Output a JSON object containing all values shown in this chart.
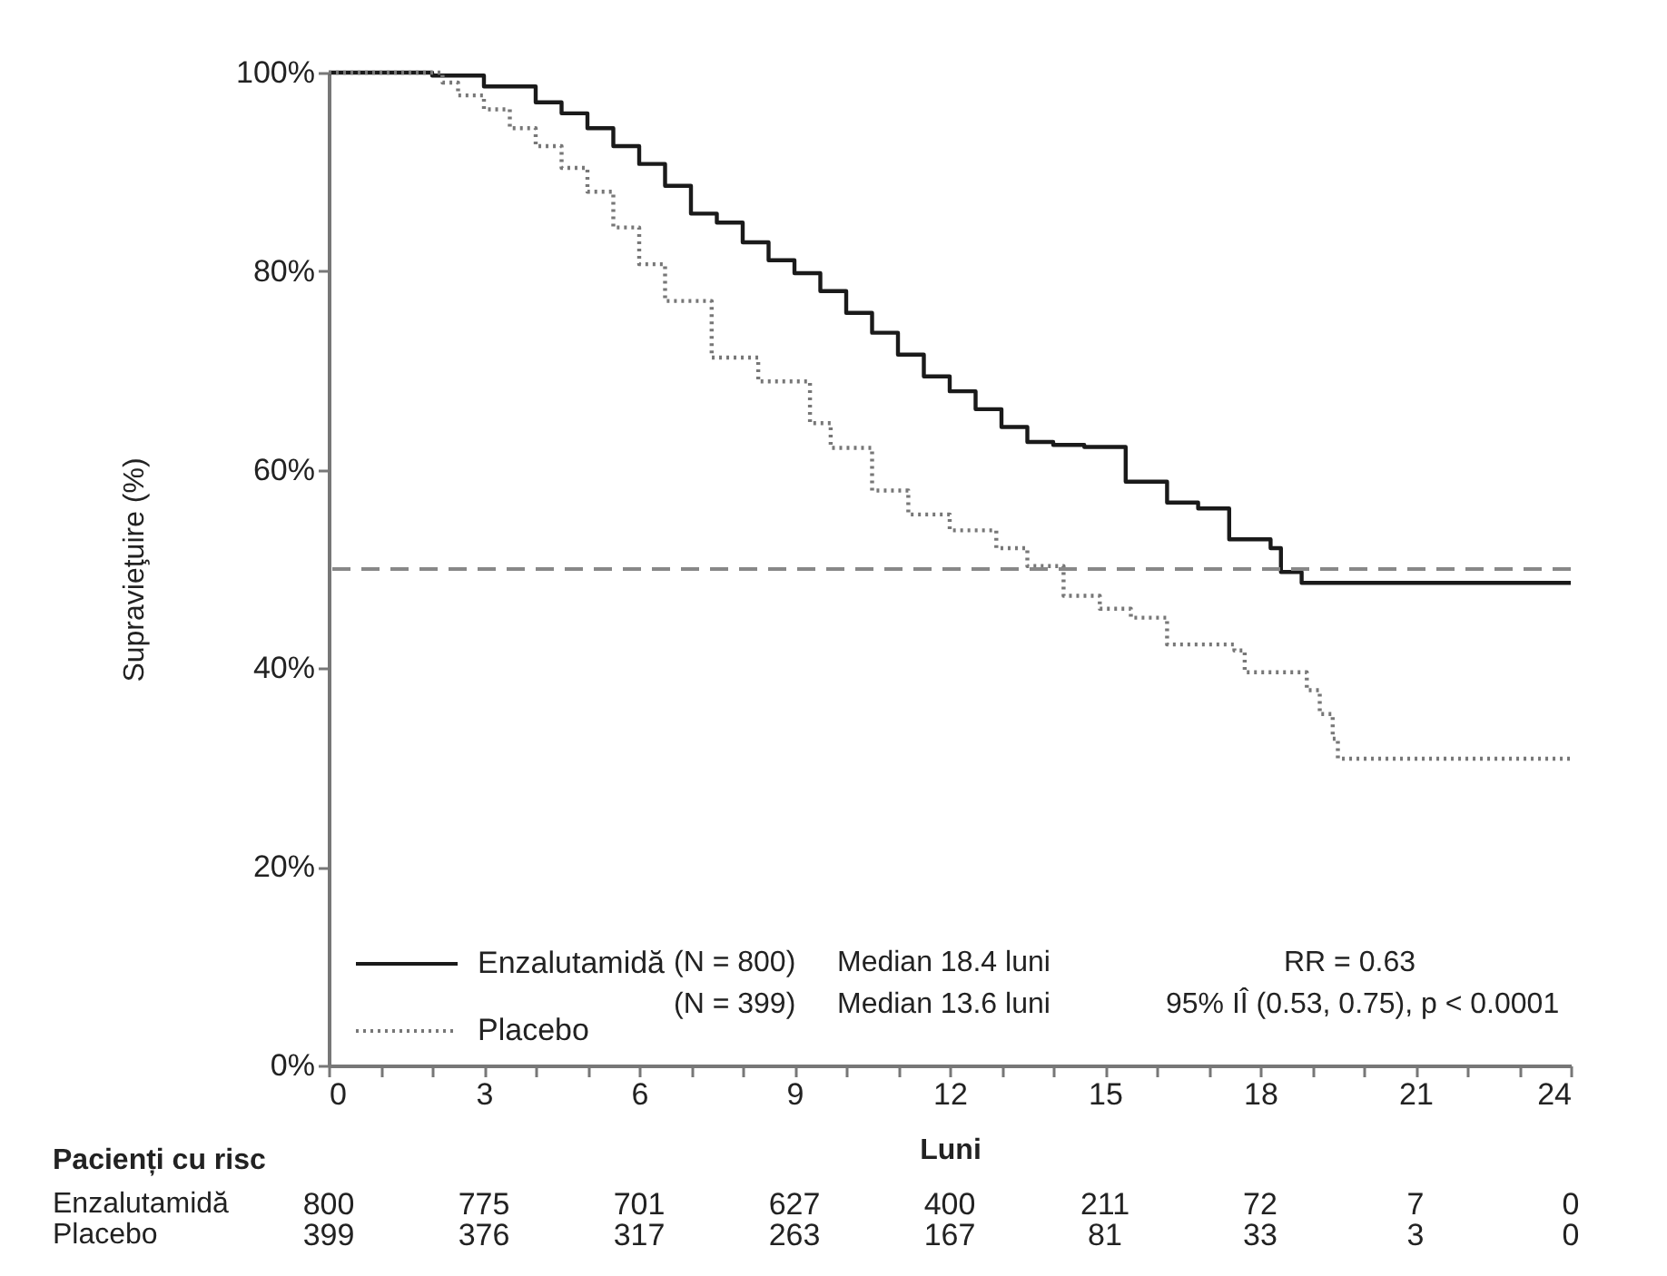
{
  "chart_data": {
    "type": "step",
    "xlabel": "Luni",
    "ylabel": "Supravieţuire   (%)",
    "xlim": [
      0,
      24
    ],
    "ylim": [
      0,
      100
    ],
    "xticks": [
      0,
      {
        "value": 1,
        "label": null
      },
      {
        "value": 2,
        "label": null
      },
      3,
      {
        "value": 4,
        "label": null
      },
      {
        "value": 5,
        "label": null
      },
      6,
      {
        "value": 7,
        "label": null
      },
      {
        "value": 8,
        "label": null
      },
      9,
      {
        "value": 10,
        "label": null
      },
      {
        "value": 11,
        "label": null
      },
      12,
      {
        "value": 13,
        "label": null
      },
      {
        "value": 14,
        "label": null
      },
      15,
      {
        "value": 16,
        "label": null
      },
      {
        "value": 17,
        "label": null
      },
      18,
      {
        "value": 19,
        "label": null
      },
      {
        "value": 20,
        "label": null
      },
      21,
      {
        "value": 22,
        "label": null
      },
      {
        "value": 23,
        "label": null
      },
      24
    ],
    "yticks": [
      {
        "value": 0,
        "label": "0%"
      },
      {
        "value": 20,
        "label": "20%"
      },
      {
        "value": 40,
        "label": "40%"
      },
      {
        "value": 60,
        "label": "60%"
      },
      {
        "value": 80,
        "label": "80%"
      },
      {
        "value": 100,
        "label": "100%"
      }
    ],
    "series": [
      {
        "name": "Enzalutamidă",
        "color": "#1a1a1a",
        "line_style": "solid",
        "x": [
          0,
          1.5,
          2,
          3,
          4,
          4.5,
          5,
          5.5,
          6,
          6.5,
          7,
          7.5,
          8,
          8.5,
          9,
          9.5,
          10,
          10.5,
          11,
          11.5,
          12,
          12.5,
          13,
          13.5,
          14,
          14.6,
          15.4,
          16.2,
          16.8,
          17.4,
          18,
          18.2,
          18.4,
          18.8,
          24
        ],
        "values": [
          100,
          100,
          99.7,
          98.6,
          97,
          95.9,
          94.4,
          92.6,
          90.8,
          88.6,
          85.8,
          84.9,
          82.9,
          81.1,
          79.8,
          78,
          75.8,
          73.8,
          71.6,
          69.4,
          67.9,
          66.1,
          64.3,
          62.8,
          62.5,
          62.3,
          58.8,
          56.7,
          56.1,
          53,
          53,
          52.1,
          49.7,
          48.6,
          48.6
        ]
      },
      {
        "name": "Placebo",
        "color": "#777777",
        "line_style": "dotted",
        "x": [
          0,
          2,
          2.2,
          2.5,
          3,
          3.5,
          4,
          4.5,
          5,
          5.5,
          6,
          6.5,
          7.4,
          8.3,
          9.3,
          9.7,
          10.5,
          11.2,
          12,
          12.9,
          13.5,
          14.2,
          14.9,
          15.5,
          16.2,
          17.5,
          17.7,
          18.7,
          18.9,
          19.15,
          19.4,
          19.5,
          24
        ],
        "values": [
          100,
          100,
          99,
          97.7,
          96.3,
          94.4,
          92.6,
          90.4,
          88,
          84.4,
          80.7,
          77,
          71.3,
          68.9,
          64.7,
          62.2,
          57.9,
          55.5,
          53.9,
          52.1,
          50.3,
          47.3,
          46,
          45.1,
          42.4,
          41.8,
          39.6,
          39.6,
          37.8,
          35.4,
          32.9,
          30.9,
          30.9
        ]
      }
    ],
    "ref_lines": [
      {
        "axis": "y",
        "value": 50,
        "label": null,
        "color": "#888888",
        "line_style": "dashed"
      }
    ],
    "legend": "bottom left",
    "annotations": [
      "(N = 800)",
      "Median 18.4 luni",
      "(N = 399)",
      "Median 13.6 luni",
      "RR = 0.63",
      "95% IÎ  (0.53, 0.75), p < 0.0001",
      "Pacienți cu risc",
      "Enzalutamidă",
      "800 775 701 627 400 211 72 7 0",
      "Placebo",
      "399 376 317 263 167 81 33 3 0"
    ]
  }
}
